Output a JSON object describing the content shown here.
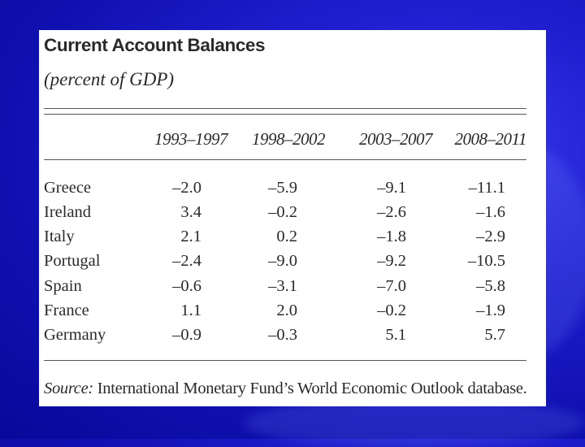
{
  "table": {
    "title": "Current Account Balances",
    "subtitle": "(percent of GDP)",
    "columns": [
      "1993–1997",
      "1998–2002",
      "2003–2007",
      "2008–2011"
    ],
    "rows": [
      {
        "country": "Greece",
        "values": [
          "–2.0",
          "–5.9",
          "–9.1",
          "–11.1"
        ]
      },
      {
        "country": "Ireland",
        "values": [
          "3.4",
          "–0.2",
          "–2.6",
          "–1.6"
        ]
      },
      {
        "country": "Italy",
        "values": [
          "2.1",
          "0.2",
          "–1.8",
          "–2.9"
        ]
      },
      {
        "country": "Portugal",
        "values": [
          "–2.4",
          "–9.0",
          "–9.2",
          "–10.5"
        ]
      },
      {
        "country": "Spain",
        "values": [
          "–0.6",
          "–3.1",
          "–7.0",
          "–5.8"
        ]
      },
      {
        "country": "France",
        "values": [
          "1.1",
          "2.0",
          "–0.2",
          "–1.9"
        ]
      },
      {
        "country": "Germany",
        "values": [
          "–0.9",
          "–0.3",
          "5.1",
          "5.7"
        ]
      }
    ],
    "source_label": "Source:",
    "source_text": " International Monetary Fund’s World Economic Outlook database."
  },
  "colors": {
    "background": "#1f1fd0",
    "card": "#ffffff",
    "text": "#2a2a2a"
  }
}
